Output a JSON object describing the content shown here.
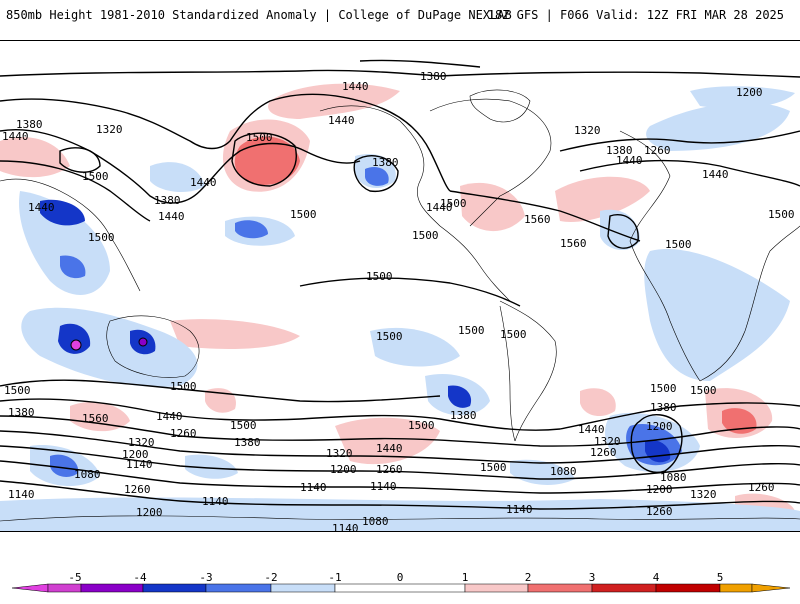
{
  "header": {
    "left_title": "850mb Height 1981-2010 Standardized Anomaly | College of DuPage NEXLAB",
    "right_title": "18Z GFS | F066 Valid: 12Z FRI MAR 28 2025"
  },
  "colors": {
    "neg5": "#e040e0",
    "neg4": "#8a00c8",
    "neg3": "#1436c8",
    "neg2": "#4a74e8",
    "neg1": "#c8def8",
    "zero": "#ffffff",
    "pos1": "#f8c8c8",
    "pos2": "#f07070",
    "pos3": "#d02020",
    "pos4": "#c00000",
    "pos5": "#f0a000",
    "contour": "#000000",
    "coastline": "#000000"
  },
  "colorbar": {
    "ticks": [
      "-5",
      "-4",
      "-3",
      "-2",
      "-1",
      "0",
      "1",
      "2",
      "3",
      "4",
      "5"
    ]
  },
  "contour_labels": [
    {
      "text": "1380"
    },
    {
      "text": "1440"
    },
    {
      "text": "1440"
    },
    {
      "text": "1380"
    },
    {
      "text": "1320"
    },
    {
      "text": "1500"
    },
    {
      "text": "1500"
    },
    {
      "text": "1440"
    },
    {
      "text": "1440"
    },
    {
      "text": "1440"
    },
    {
      "text": "1380"
    },
    {
      "text": "1500"
    },
    {
      "text": "1440"
    },
    {
      "text": "1380"
    },
    {
      "text": "1500"
    },
    {
      "text": "1500"
    },
    {
      "text": "1440"
    },
    {
      "text": "1560"
    },
    {
      "text": "1560"
    },
    {
      "text": "1500"
    },
    {
      "text": "1200"
    },
    {
      "text": "1320"
    },
    {
      "text": "1380"
    },
    {
      "text": "1260"
    },
    {
      "text": "1440"
    },
    {
      "text": "1440"
    },
    {
      "text": "1500"
    },
    {
      "text": "1500"
    },
    {
      "text": "1500"
    },
    {
      "text": "1500"
    },
    {
      "text": "1500"
    },
    {
      "text": "1500"
    },
    {
      "text": "1500"
    },
    {
      "text": "1500"
    },
    {
      "text": "1500"
    },
    {
      "text": "1380"
    },
    {
      "text": "1560"
    },
    {
      "text": "1440"
    },
    {
      "text": "1320"
    },
    {
      "text": "1200"
    },
    {
      "text": "1140"
    },
    {
      "text": "1260"
    },
    {
      "text": "1380"
    },
    {
      "text": "1080"
    },
    {
      "text": "1140"
    },
    {
      "text": "1260"
    },
    {
      "text": "1200"
    },
    {
      "text": "1140"
    },
    {
      "text": "1500"
    },
    {
      "text": "1440"
    },
    {
      "text": "1320"
    },
    {
      "text": "1260"
    },
    {
      "text": "1200"
    },
    {
      "text": "1140"
    },
    {
      "text": "1080"
    },
    {
      "text": "1140"
    },
    {
      "text": "1080"
    },
    {
      "text": "1500"
    },
    {
      "text": "1380"
    },
    {
      "text": "1200"
    },
    {
      "text": "1440"
    },
    {
      "text": "1380"
    },
    {
      "text": "1320"
    },
    {
      "text": "1260"
    },
    {
      "text": "1080"
    },
    {
      "text": "1200"
    },
    {
      "text": "1140"
    },
    {
      "text": "1260"
    },
    {
      "text": "1320"
    },
    {
      "text": "1260"
    },
    {
      "text": "1500"
    },
    {
      "text": "1500"
    },
    {
      "text": "1140"
    }
  ]
}
